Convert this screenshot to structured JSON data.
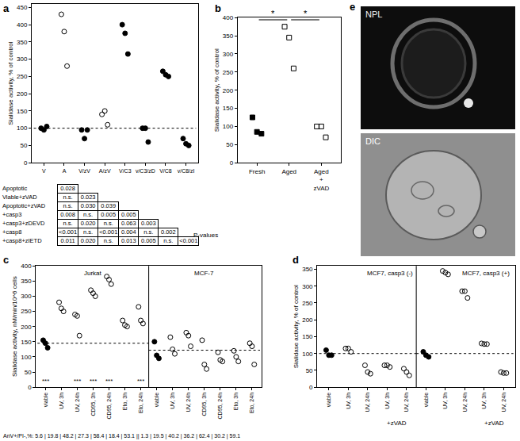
{
  "chart_data": [
    {
      "type": "strip",
      "title": "a",
      "y_label": "Sialidase activity, % of control",
      "categories": [
        "V",
        "A",
        "V/zV",
        "A/zV",
        "V/C3",
        "v/C3/zD",
        "V/C8",
        "v/C8/zI"
      ],
      "series": [
        {
          "marker": "circle",
          "values": [
            [
              100,
              95,
              105
            ],
            null,
            [
              95,
              70,
              95
            ],
            null,
            [
              400,
              375,
              315
            ],
            [
              100,
              100,
              60
            ],
            [
              265,
              255,
              250
            ],
            [
              70,
              55,
              50
            ]
          ]
        },
        {
          "marker": "circle-open",
          "values": [
            null,
            [
              430,
              380,
              280
            ],
            null,
            [
              140,
              150,
              110
            ],
            null,
            null,
            null,
            null
          ]
        }
      ],
      "reference_line": 100,
      "ylim": [
        0,
        460
      ],
      "yticks": [
        0,
        50,
        100,
        150,
        200,
        250,
        300,
        350,
        400,
        450
      ]
    },
    {
      "type": "strip",
      "title": "b",
      "y_label": "Sialidase activity, % of control",
      "categories": [
        "Fresh",
        "Aged",
        "Aged + zVAD"
      ],
      "series": [
        {
          "marker": "square",
          "values": [
            [
              125,
              85,
              80
            ],
            null,
            null
          ]
        },
        {
          "marker": "square-open",
          "values": [
            null,
            [
              375,
              345,
              260
            ],
            [
              100,
              100,
              70
            ]
          ]
        }
      ],
      "brackets": [
        {
          "from": 0,
          "to": 1,
          "label": "*"
        },
        {
          "from": 1,
          "to": 2,
          "label": "*"
        }
      ],
      "ylim": [
        0,
        400
      ],
      "yticks": [
        0,
        50,
        100,
        150,
        200,
        250,
        300,
        350,
        400
      ]
    },
    {
      "type": "strip",
      "title": "c",
      "y_label": "Sialidase activity, nM/min/10^6 cells",
      "groups": [
        {
          "label": "Jurkat",
          "reference_line": 145,
          "categories": [
            "viable",
            "UV, 3h",
            "UV, 24h",
            "CD95, 3h",
            "CD95, 24h",
            "Eto, 3h",
            "Eto, 24h"
          ],
          "series": [
            {
              "marker": "circle",
              "values": [
                [
                  155,
                  145,
                  130
                ],
                null,
                null,
                null,
                null,
                null,
                null
              ]
            },
            {
              "marker": "circle-open",
              "values": [
                null,
                [
                  280,
                  260,
                  250
                ],
                [
                  240,
                  235,
                  170
                ],
                [
                  320,
                  310,
                  300
                ],
                [
                  365,
                  355,
                  340
                ],
                [
                  220,
                  205,
                  200
                ],
                [
                  265,
                  220,
                  210
                ]
              ]
            }
          ],
          "annotations": [
            {
              "category": 0,
              "text": "***"
            },
            {
              "category": 2,
              "text": "***"
            },
            {
              "category": 3,
              "text": "***"
            },
            {
              "category": 4,
              "text": "***"
            },
            {
              "category": 6,
              "text": "***"
            }
          ]
        },
        {
          "label": "MCF-7",
          "reference_line": 122,
          "categories": [
            "viable",
            "UV, 3h",
            "UV, 24h",
            "CD95, 3h",
            "CD95, 24h",
            "Eto, 3h",
            "Eto, 24h"
          ],
          "series": [
            {
              "marker": "circle",
              "values": [
                [
                  150,
                  105,
                  95
                ],
                null,
                null,
                null,
                null,
                null,
                null
              ]
            },
            {
              "marker": "circle-open",
              "values": [
                null,
                [
                  165,
                  125,
                  110
                ],
                [
                  180,
                  170,
                  135
                ],
                [
                  155,
                  75,
                  60
                ],
                [
                  115,
                  90,
                  85
                ],
                [
                  120,
                  100,
                  85
                ],
                [
                  145,
                  135,
                  75
                ]
              ]
            }
          ]
        }
      ],
      "footnote": "AnV+/PI-,%: 5.6 | 19.8 | 48.2 | 27.3 | 58.4 | 18.4 | 53.1 || 1.3 | 19.5 | 40.2 | 36.2 | 62.4 | 30.2 | 59.1",
      "ylim": [
        0,
        400
      ],
      "yticks": [
        0,
        50,
        100,
        150,
        200,
        250,
        300,
        350,
        400
      ]
    },
    {
      "type": "strip",
      "title": "d",
      "y_label": "Sialidase activity, % of control",
      "groups": [
        {
          "label": "MCF7, casp3 (-)",
          "reference_line": 100,
          "categories": [
            "viable",
            "UV, 3h",
            "UV, 24h",
            "UV, 3h",
            "UV, 24h"
          ],
          "series": [
            {
              "marker": "circle",
              "values": [
                [
                  110,
                  95,
                  95
                ],
                null,
                null,
                null,
                null
              ]
            },
            {
              "marker": "circle-open",
              "values": [
                null,
                [
                  115,
                  115,
                  105
                ],
                [
                  65,
                  45,
                  40
                ],
                [
                  65,
                  65,
                  60
                ],
                [
                  55,
                  45,
                  35
                ]
              ]
            }
          ],
          "brackets": [
            {
              "from": 3,
              "to": 4,
              "label": "+zVAD"
            }
          ]
        },
        {
          "label": "MCF7, casp3 (+)",
          "reference_line": 100,
          "categories": [
            "viable",
            "UV, 3h",
            "UV, 24h",
            "UV, 3h",
            "UV, 24h"
          ],
          "series": [
            {
              "marker": "circle",
              "values": [
                [
                  105,
                  95,
                  90
                ],
                null,
                null,
                null,
                null
              ]
            },
            {
              "marker": "circle-open",
              "values": [
                null,
                [
                  345,
                  340,
                  335
                ],
                [
                  285,
                  285,
                  265
                ],
                [
                  130,
                  128,
                  128
                ],
                [
                  45,
                  42,
                  42
                ]
              ]
            }
          ],
          "brackets": [
            {
              "from": 3,
              "to": 4,
              "label": "+zVAD"
            }
          ]
        }
      ],
      "ylim": [
        0,
        360
      ],
      "yticks": [
        0,
        50,
        100,
        150,
        200,
        250,
        300,
        350
      ]
    }
  ],
  "pvalue_table": {
    "title": "P-values",
    "rows": [
      {
        "label": "Apoptotic",
        "values": [
          "0.028"
        ]
      },
      {
        "label": "Viable+zVAD",
        "values": [
          "n.s.",
          "0.023"
        ]
      },
      {
        "label": "Apoptotic+zVAD",
        "values": [
          "n.s.",
          "0.030",
          "0.039"
        ]
      },
      {
        "label": "+casp3",
        "values": [
          "0.008",
          "n.s.",
          "0.005",
          "0.005"
        ]
      },
      {
        "label": "+casp3+zDEVD",
        "values": [
          "n.s.",
          "0.020",
          "n.s.",
          "0.063",
          "0.003"
        ]
      },
      {
        "label": "+casp8",
        "values": [
          "<0.001",
          "n.s.",
          "<0.001",
          "0.004",
          "n.s.",
          "0.002"
        ]
      },
      {
        "label": "+casp8+zIETD",
        "values": [
          "0.011",
          "0.020",
          "n.s.",
          "0.013",
          "0.005",
          "n.s.",
          "<0.001"
        ]
      }
    ]
  },
  "panel_e": {
    "title": "e",
    "images": [
      "NPL",
      "DIC"
    ]
  }
}
